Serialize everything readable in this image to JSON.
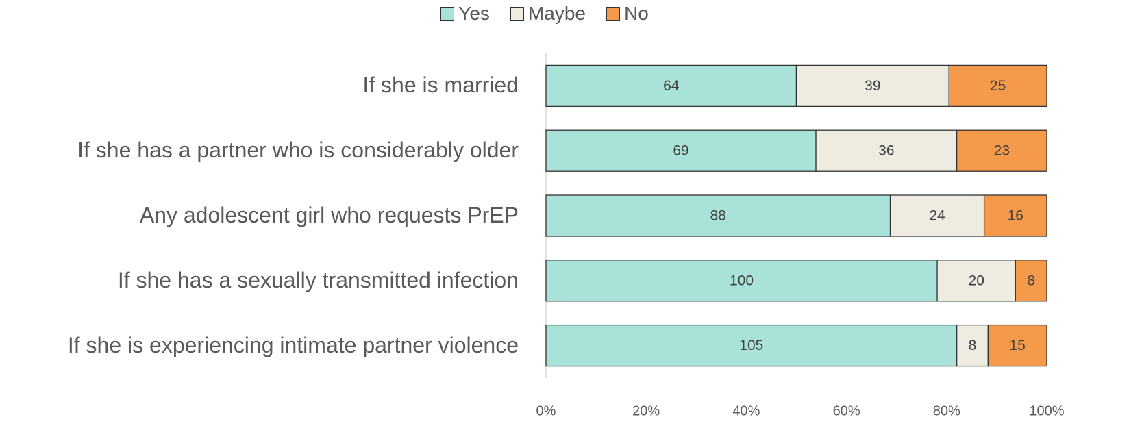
{
  "chart_data": {
    "type": "stacked_bar_100",
    "orientation": "horizontal",
    "categories": [
      "If she is married",
      "If she has a partner who is considerably older",
      "Any adolescent girl who requests PrEP",
      "If she has a sexually transmitted infection",
      "If she is experiencing intimate partner violence"
    ],
    "series": [
      {
        "name": "Yes",
        "color": "#a8e2d9",
        "values": [
          64,
          69,
          88,
          100,
          105
        ]
      },
      {
        "name": "Maybe",
        "color": "#eeebe0",
        "values": [
          39,
          36,
          24,
          20,
          8
        ]
      },
      {
        "name": "No",
        "color": "#f59a4a",
        "values": [
          25,
          23,
          16,
          8,
          15
        ]
      }
    ],
    "xlim": [
      0,
      100
    ],
    "xticks": [
      {
        "value": 0,
        "label": "0%"
      },
      {
        "value": 20,
        "label": "20%"
      },
      {
        "value": 40,
        "label": "40%"
      },
      {
        "value": 60,
        "label": "60%"
      },
      {
        "value": 80,
        "label": "80%"
      },
      {
        "value": 100,
        "label": "100%"
      }
    ],
    "legend": "top"
  }
}
